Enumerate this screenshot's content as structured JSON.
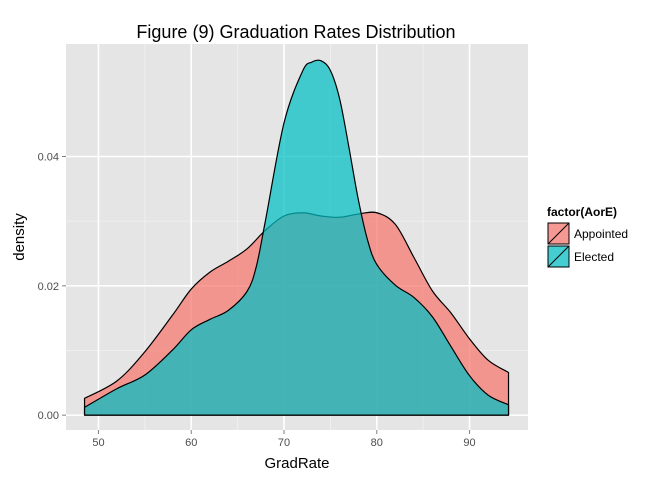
{
  "chart_data": {
    "type": "area",
    "title": "Figure (9) Graduation Rates Distribution",
    "xlabel": "GradRate",
    "ylabel": "density",
    "xlim": [
      46.5,
      96.3
    ],
    "ylim": [
      -0.0023,
      0.0574
    ],
    "x_ticks": [
      50,
      60,
      70,
      80,
      90
    ],
    "y_ticks": [
      0.0,
      0.02,
      0.04
    ],
    "x_tick_labels": [
      "50",
      "60",
      "70",
      "80",
      "90"
    ],
    "y_tick_labels": [
      "0.00",
      "0.02",
      "0.04"
    ],
    "grid": true,
    "legend_title": "factor(AorE)",
    "legend_position": "right",
    "series": [
      {
        "name": "Appointed",
        "color": "#F8766D",
        "x": [
          48.5,
          52,
          55,
          58,
          60,
          62,
          64,
          66,
          68,
          70,
          72,
          74,
          76,
          78,
          80,
          82,
          84,
          86,
          88,
          90,
          92,
          94.2
        ],
        "y": [
          0.0026,
          0.0053,
          0.0098,
          0.0155,
          0.0195,
          0.0221,
          0.0238,
          0.0257,
          0.0286,
          0.0308,
          0.0313,
          0.0308,
          0.0306,
          0.0311,
          0.0313,
          0.0295,
          0.0244,
          0.0192,
          0.0158,
          0.0118,
          0.0085,
          0.0066
        ]
      },
      {
        "name": "Elected",
        "color": "#00BFC4",
        "x": [
          48.5,
          52,
          55,
          58,
          60,
          62,
          64,
          66,
          67,
          68,
          70,
          72,
          73,
          74,
          75,
          76,
          77,
          78,
          79,
          80,
          82,
          84,
          86,
          88,
          90,
          92,
          94.2
        ],
        "y": [
          0.0012,
          0.0041,
          0.0062,
          0.0101,
          0.0132,
          0.0148,
          0.0162,
          0.0191,
          0.0229,
          0.0301,
          0.0452,
          0.0532,
          0.0546,
          0.0548,
          0.0533,
          0.0489,
          0.0414,
          0.0334,
          0.0271,
          0.0233,
          0.0201,
          0.0182,
          0.0152,
          0.0106,
          0.0061,
          0.0031,
          0.0016
        ]
      }
    ]
  }
}
